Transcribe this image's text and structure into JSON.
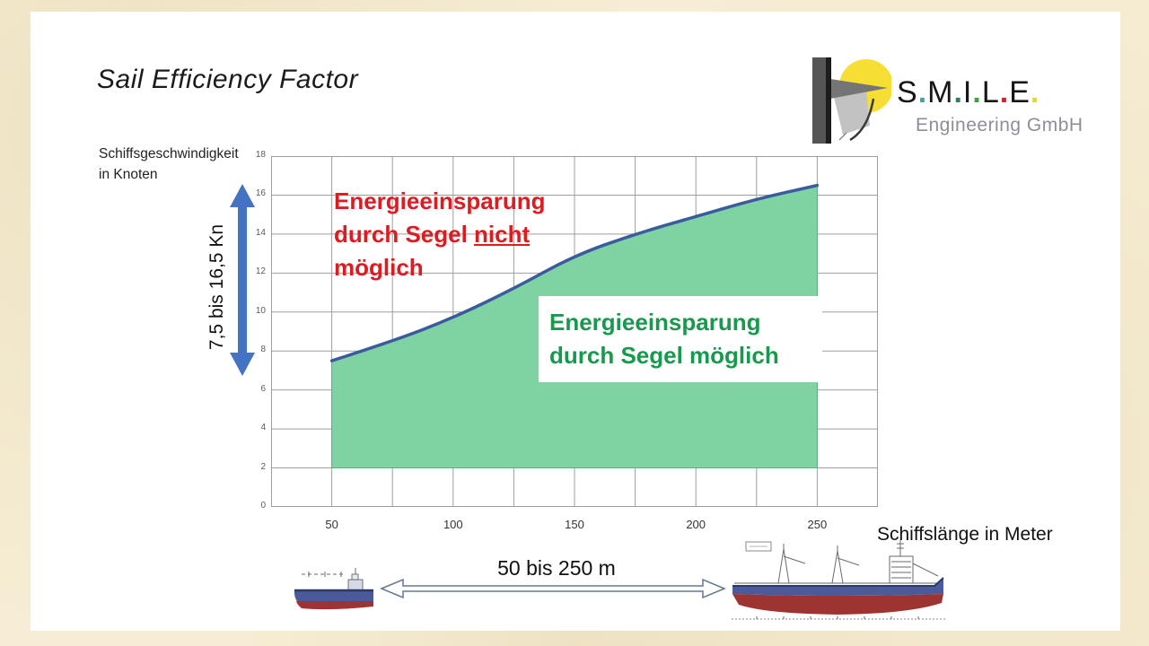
{
  "slide": {
    "title": "Sail Efficiency Factor"
  },
  "logo": {
    "name_letters": [
      "S",
      "M",
      "I",
      "L",
      "E"
    ],
    "dot_colors": [
      "#3FA3B5",
      "#2E7D5B",
      "#43A047",
      "#C62828",
      "#E2D63B"
    ],
    "subtitle": "Engineering GmbH",
    "sun_color": "#F6DE35",
    "mast_dark": "#555555",
    "mast_edge": "#1c1c1c",
    "sail_gray": "#C2C2C2"
  },
  "chart_data": {
    "type": "area",
    "title": "",
    "x_axis_title": "Schiffslänge in Meter",
    "y_axis_title_lines": [
      "Schiffsgeschwindigkeit",
      "in Knoten"
    ],
    "x_ticks": [
      50,
      100,
      150,
      200,
      250
    ],
    "y_ticks": [
      0,
      2,
      4,
      6,
      8,
      10,
      12,
      14,
      16,
      18
    ],
    "x_range": [
      25,
      275
    ],
    "y_range": [
      0,
      18
    ],
    "x_grid_step": 25,
    "y_grid_step": 2,
    "grid_on": true,
    "series": [
      {
        "name": "Schiffsgeschwindigkeit in Knoten",
        "x": [
          50,
          75,
          100,
          125,
          150,
          175,
          200,
          225,
          250
        ],
        "y": [
          7.5,
          8.5,
          9.7,
          11.2,
          12.9,
          14.0,
          14.9,
          15.8,
          16.5
        ]
      }
    ],
    "area": {
      "baseline_y": 2,
      "x_from": 50,
      "x_to": 250
    },
    "colors": {
      "line": "#3A5C9E",
      "fill": "#7FD3A2",
      "fill_edge": "#57B184",
      "grid": "#9E9E9E",
      "axis_text": "#595959"
    }
  },
  "annotations": {
    "red_note": {
      "line1": "Energieeinsparung",
      "line2_prefix": "durch Segel ",
      "line2_underlined": "nicht",
      "line3": "möglich",
      "color": "#DF1B20"
    },
    "green_note": {
      "line1": "Energieeinsparung",
      "line2": "durch Segel möglich",
      "color": "#17994E"
    },
    "speed_arrow_label": "7,5 bis 16,5 Kn",
    "length_arrow_label": "50 bis 250 m"
  },
  "ui": {
    "arrow_blue": "#4472C4",
    "length_arrow_outline": "#66788F"
  },
  "ships": {
    "hull_blue": "#4A5A9B",
    "hull_red": "#9E3431"
  }
}
